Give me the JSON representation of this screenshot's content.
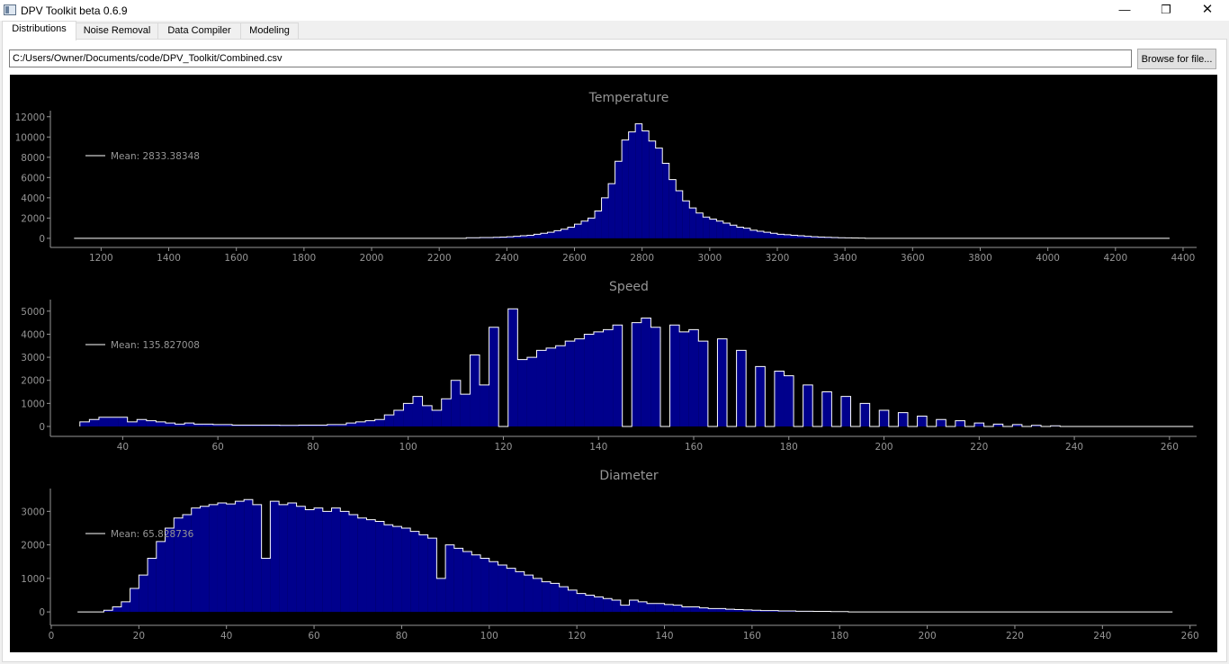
{
  "window": {
    "title": "DPV Toolkit beta 0.6.9",
    "minimize_glyph": "—",
    "maximize_glyph": "❐",
    "close_glyph": "✕"
  },
  "tabs": [
    {
      "label": "Distributions",
      "active": true
    },
    {
      "label": "Noise Removal",
      "active": false
    },
    {
      "label": "Data Compiler",
      "active": false
    },
    {
      "label": "Modeling",
      "active": false
    }
  ],
  "file": {
    "path_value": "C:/Users/Owner/Documents/code/DPV_Toolkit/Combined.csv",
    "browse_label": "Browse for file..."
  },
  "colors": {
    "plot_background": "#000000",
    "bar_fill": "#00008c",
    "bar_outline": "#ffffff",
    "axis": "#969696",
    "text": "#969696"
  },
  "chart_data": [
    {
      "type": "bar",
      "title": "Temperature",
      "xlabel": "",
      "ylabel": "",
      "legend": "Mean: 2833.38348",
      "legend_position": "top-left",
      "xlim": [
        1050,
        4440
      ],
      "ylim": [
        -900,
        12600
      ],
      "xticks": [
        1200,
        1400,
        1600,
        1800,
        2000,
        2200,
        2400,
        2600,
        2800,
        3000,
        3200,
        3400,
        3600,
        3800,
        4000,
        4200,
        4400
      ],
      "yticks": [
        0,
        2000,
        4000,
        6000,
        8000,
        10000,
        12000
      ],
      "x_start": 1120,
      "x_end": 4350,
      "bin_width": 20,
      "bins": [
        {
          "x": 2280,
          "value": 50
        },
        {
          "x": 2300,
          "value": 50
        },
        {
          "x": 2320,
          "value": 80
        },
        {
          "x": 2340,
          "value": 80
        },
        {
          "x": 2360,
          "value": 100
        },
        {
          "x": 2380,
          "value": 120
        },
        {
          "x": 2400,
          "value": 150
        },
        {
          "x": 2420,
          "value": 200
        },
        {
          "x": 2440,
          "value": 250
        },
        {
          "x": 2460,
          "value": 300
        },
        {
          "x": 2480,
          "value": 400
        },
        {
          "x": 2500,
          "value": 500
        },
        {
          "x": 2520,
          "value": 600
        },
        {
          "x": 2540,
          "value": 750
        },
        {
          "x": 2560,
          "value": 900
        },
        {
          "x": 2580,
          "value": 1100
        },
        {
          "x": 2600,
          "value": 1400
        },
        {
          "x": 2620,
          "value": 1700
        },
        {
          "x": 2640,
          "value": 2000
        },
        {
          "x": 2660,
          "value": 2700
        },
        {
          "x": 2680,
          "value": 4000
        },
        {
          "x": 2700,
          "value": 5400
        },
        {
          "x": 2720,
          "value": 7600
        },
        {
          "x": 2740,
          "value": 9700
        },
        {
          "x": 2760,
          "value": 10500
        },
        {
          "x": 2780,
          "value": 11300
        },
        {
          "x": 2800,
          "value": 10600
        },
        {
          "x": 2820,
          "value": 9600
        },
        {
          "x": 2840,
          "value": 8900
        },
        {
          "x": 2860,
          "value": 7400
        },
        {
          "x": 2880,
          "value": 5800
        },
        {
          "x": 2900,
          "value": 4700
        },
        {
          "x": 2920,
          "value": 3700
        },
        {
          "x": 2940,
          "value": 3000
        },
        {
          "x": 2960,
          "value": 2500
        },
        {
          "x": 2980,
          "value": 2100
        },
        {
          "x": 3000,
          "value": 1900
        },
        {
          "x": 3020,
          "value": 1700
        },
        {
          "x": 3040,
          "value": 1500
        },
        {
          "x": 3060,
          "value": 1300
        },
        {
          "x": 3080,
          "value": 1100
        },
        {
          "x": 3100,
          "value": 1000
        },
        {
          "x": 3120,
          "value": 800
        },
        {
          "x": 3140,
          "value": 700
        },
        {
          "x": 3160,
          "value": 600
        },
        {
          "x": 3180,
          "value": 500
        },
        {
          "x": 3200,
          "value": 400
        },
        {
          "x": 3220,
          "value": 350
        },
        {
          "x": 3240,
          "value": 300
        },
        {
          "x": 3260,
          "value": 250
        },
        {
          "x": 3280,
          "value": 200
        },
        {
          "x": 3300,
          "value": 150
        },
        {
          "x": 3320,
          "value": 120
        },
        {
          "x": 3340,
          "value": 100
        },
        {
          "x": 3360,
          "value": 80
        },
        {
          "x": 3380,
          "value": 60
        },
        {
          "x": 3400,
          "value": 40
        },
        {
          "x": 3420,
          "value": 30
        },
        {
          "x": 3440,
          "value": 20
        }
      ]
    },
    {
      "type": "bar",
      "title": "Speed",
      "xlabel": "",
      "ylabel": "",
      "legend": "Mean: 135.827008",
      "legend_position": "top-left",
      "xlim": [
        24.8,
        265.7
      ],
      "ylim": [
        -430,
        5500
      ],
      "xticks": [
        40,
        60,
        80,
        100,
        120,
        140,
        160,
        180,
        200,
        220,
        240,
        260
      ],
      "yticks": [
        0,
        1000,
        2000,
        3000,
        4000,
        5000
      ],
      "x_start": 31,
      "x_end": 265,
      "bin_width": 2,
      "bins": [
        {
          "x": 31,
          "value": 200
        },
        {
          "x": 33,
          "value": 300
        },
        {
          "x": 35,
          "value": 400
        },
        {
          "x": 37,
          "value": 400
        },
        {
          "x": 39,
          "value": 400
        },
        {
          "x": 41,
          "value": 200
        },
        {
          "x": 43,
          "value": 300
        },
        {
          "x": 45,
          "value": 250
        },
        {
          "x": 47,
          "value": 200
        },
        {
          "x": 49,
          "value": 150
        },
        {
          "x": 51,
          "value": 100
        },
        {
          "x": 53,
          "value": 150
        },
        {
          "x": 55,
          "value": 100
        },
        {
          "x": 57,
          "value": 100
        },
        {
          "x": 59,
          "value": 80
        },
        {
          "x": 61,
          "value": 80
        },
        {
          "x": 63,
          "value": 60
        },
        {
          "x": 65,
          "value": 60
        },
        {
          "x": 67,
          "value": 60
        },
        {
          "x": 69,
          "value": 60
        },
        {
          "x": 71,
          "value": 60
        },
        {
          "x": 73,
          "value": 50
        },
        {
          "x": 75,
          "value": 50
        },
        {
          "x": 77,
          "value": 60
        },
        {
          "x": 79,
          "value": 60
        },
        {
          "x": 81,
          "value": 60
        },
        {
          "x": 83,
          "value": 80
        },
        {
          "x": 85,
          "value": 80
        },
        {
          "x": 87,
          "value": 150
        },
        {
          "x": 89,
          "value": 200
        },
        {
          "x": 91,
          "value": 250
        },
        {
          "x": 93,
          "value": 300
        },
        {
          "x": 95,
          "value": 500
        },
        {
          "x": 97,
          "value": 700
        },
        {
          "x": 99,
          "value": 1000
        },
        {
          "x": 101,
          "value": 1300
        },
        {
          "x": 103,
          "value": 900
        },
        {
          "x": 105,
          "value": 700
        },
        {
          "x": 107,
          "value": 1200
        },
        {
          "x": 109,
          "value": 2000
        },
        {
          "x": 111,
          "value": 1400
        },
        {
          "x": 113,
          "value": 3100
        },
        {
          "x": 115,
          "value": 1800
        },
        {
          "x": 117,
          "value": 4300
        },
        {
          "x": 119,
          "value": 0
        },
        {
          "x": 121,
          "value": 5100
        },
        {
          "x": 123,
          "value": 2900
        },
        {
          "x": 125,
          "value": 3000
        },
        {
          "x": 127,
          "value": 3300
        },
        {
          "x": 129,
          "value": 3400
        },
        {
          "x": 131,
          "value": 3500
        },
        {
          "x": 133,
          "value": 3700
        },
        {
          "x": 135,
          "value": 3800
        },
        {
          "x": 137,
          "value": 4000
        },
        {
          "x": 139,
          "value": 4100
        },
        {
          "x": 141,
          "value": 4200
        },
        {
          "x": 143,
          "value": 4400
        },
        {
          "x": 145,
          "value": 0
        },
        {
          "x": 147,
          "value": 4500
        },
        {
          "x": 149,
          "value": 4700
        },
        {
          "x": 151,
          "value": 4300
        },
        {
          "x": 153,
          "value": 0
        },
        {
          "x": 155,
          "value": 4400
        },
        {
          "x": 157,
          "value": 4100
        },
        {
          "x": 159,
          "value": 4200
        },
        {
          "x": 161,
          "value": 3700
        },
        {
          "x": 163,
          "value": 0
        },
        {
          "x": 165,
          "value": 3800
        },
        {
          "x": 167,
          "value": 0
        },
        {
          "x": 169,
          "value": 3300
        },
        {
          "x": 171,
          "value": 0
        },
        {
          "x": 173,
          "value": 2600
        },
        {
          "x": 175,
          "value": 0
        },
        {
          "x": 177,
          "value": 2400
        },
        {
          "x": 179,
          "value": 2200
        },
        {
          "x": 181,
          "value": 0
        },
        {
          "x": 183,
          "value": 1800
        },
        {
          "x": 185,
          "value": 0
        },
        {
          "x": 187,
          "value": 1500
        },
        {
          "x": 189,
          "value": 0
        },
        {
          "x": 191,
          "value": 1300
        },
        {
          "x": 193,
          "value": 0
        },
        {
          "x": 195,
          "value": 1000
        },
        {
          "x": 197,
          "value": 0
        },
        {
          "x": 199,
          "value": 700
        },
        {
          "x": 201,
          "value": 0
        },
        {
          "x": 203,
          "value": 600
        },
        {
          "x": 205,
          "value": 0
        },
        {
          "x": 207,
          "value": 450
        },
        {
          "x": 209,
          "value": 0
        },
        {
          "x": 211,
          "value": 300
        },
        {
          "x": 213,
          "value": 0
        },
        {
          "x": 215,
          "value": 250
        },
        {
          "x": 217,
          "value": 0
        },
        {
          "x": 219,
          "value": 150
        },
        {
          "x": 221,
          "value": 0
        },
        {
          "x": 223,
          "value": 100
        },
        {
          "x": 225,
          "value": 0
        },
        {
          "x": 227,
          "value": 80
        },
        {
          "x": 229,
          "value": 0
        },
        {
          "x": 231,
          "value": 50
        },
        {
          "x": 233,
          "value": 0
        },
        {
          "x": 235,
          "value": 30
        }
      ]
    },
    {
      "type": "bar",
      "title": "Diameter",
      "xlabel": "",
      "ylabel": "",
      "legend": "Mean: 65.828736",
      "legend_position": "top-left",
      "xlim": [
        -0.2,
        261.5
      ],
      "ylim": [
        -400,
        3680
      ],
      "xticks": [
        0,
        20,
        40,
        60,
        80,
        100,
        120,
        140,
        160,
        180,
        200,
        220,
        240,
        260
      ],
      "yticks": [
        0,
        1000,
        2000,
        3000
      ],
      "x_start": 6,
      "x_end": 256,
      "bin_width": 2,
      "bins": [
        {
          "x": 12,
          "value": 50
        },
        {
          "x": 14,
          "value": 150
        },
        {
          "x": 16,
          "value": 300
        },
        {
          "x": 18,
          "value": 700
        },
        {
          "x": 20,
          "value": 1100
        },
        {
          "x": 22,
          "value": 1600
        },
        {
          "x": 24,
          "value": 2100
        },
        {
          "x": 26,
          "value": 2500
        },
        {
          "x": 28,
          "value": 2800
        },
        {
          "x": 30,
          "value": 2900
        },
        {
          "x": 32,
          "value": 3100
        },
        {
          "x": 34,
          "value": 3150
        },
        {
          "x": 36,
          "value": 3200
        },
        {
          "x": 38,
          "value": 3250
        },
        {
          "x": 40,
          "value": 3220
        },
        {
          "x": 42,
          "value": 3300
        },
        {
          "x": 44,
          "value": 3350
        },
        {
          "x": 46,
          "value": 3200
        },
        {
          "x": 48,
          "value": 1600
        },
        {
          "x": 50,
          "value": 3300
        },
        {
          "x": 52,
          "value": 3200
        },
        {
          "x": 54,
          "value": 3250
        },
        {
          "x": 56,
          "value": 3150
        },
        {
          "x": 58,
          "value": 3050
        },
        {
          "x": 60,
          "value": 3100
        },
        {
          "x": 62,
          "value": 3000
        },
        {
          "x": 64,
          "value": 3100
        },
        {
          "x": 66,
          "value": 3000
        },
        {
          "x": 68,
          "value": 2900
        },
        {
          "x": 70,
          "value": 2800
        },
        {
          "x": 72,
          "value": 2750
        },
        {
          "x": 74,
          "value": 2700
        },
        {
          "x": 76,
          "value": 2600
        },
        {
          "x": 78,
          "value": 2550
        },
        {
          "x": 80,
          "value": 2500
        },
        {
          "x": 82,
          "value": 2400
        },
        {
          "x": 84,
          "value": 2300
        },
        {
          "x": 86,
          "value": 2200
        },
        {
          "x": 88,
          "value": 1000
        },
        {
          "x": 90,
          "value": 2000
        },
        {
          "x": 92,
          "value": 1900
        },
        {
          "x": 94,
          "value": 1800
        },
        {
          "x": 96,
          "value": 1700
        },
        {
          "x": 98,
          "value": 1600
        },
        {
          "x": 100,
          "value": 1500
        },
        {
          "x": 102,
          "value": 1400
        },
        {
          "x": 104,
          "value": 1300
        },
        {
          "x": 106,
          "value": 1200
        },
        {
          "x": 108,
          "value": 1100
        },
        {
          "x": 110,
          "value": 1000
        },
        {
          "x": 112,
          "value": 900
        },
        {
          "x": 114,
          "value": 850
        },
        {
          "x": 116,
          "value": 750
        },
        {
          "x": 118,
          "value": 650
        },
        {
          "x": 120,
          "value": 550
        },
        {
          "x": 122,
          "value": 500
        },
        {
          "x": 124,
          "value": 450
        },
        {
          "x": 126,
          "value": 400
        },
        {
          "x": 128,
          "value": 350
        },
        {
          "x": 130,
          "value": 200
        },
        {
          "x": 132,
          "value": 350
        },
        {
          "x": 134,
          "value": 300
        },
        {
          "x": 136,
          "value": 250
        },
        {
          "x": 138,
          "value": 250
        },
        {
          "x": 140,
          "value": 220
        },
        {
          "x": 142,
          "value": 200
        },
        {
          "x": 144,
          "value": 150
        },
        {
          "x": 146,
          "value": 150
        },
        {
          "x": 148,
          "value": 120
        },
        {
          "x": 150,
          "value": 100
        },
        {
          "x": 152,
          "value": 100
        },
        {
          "x": 154,
          "value": 80
        },
        {
          "x": 156,
          "value": 70
        },
        {
          "x": 158,
          "value": 60
        },
        {
          "x": 160,
          "value": 50
        },
        {
          "x": 162,
          "value": 40
        },
        {
          "x": 164,
          "value": 40
        },
        {
          "x": 166,
          "value": 30
        },
        {
          "x": 168,
          "value": 30
        },
        {
          "x": 170,
          "value": 20
        },
        {
          "x": 172,
          "value": 20
        },
        {
          "x": 174,
          "value": 15
        },
        {
          "x": 176,
          "value": 15
        },
        {
          "x": 178,
          "value": 10
        },
        {
          "x": 180,
          "value": 10
        }
      ]
    }
  ]
}
